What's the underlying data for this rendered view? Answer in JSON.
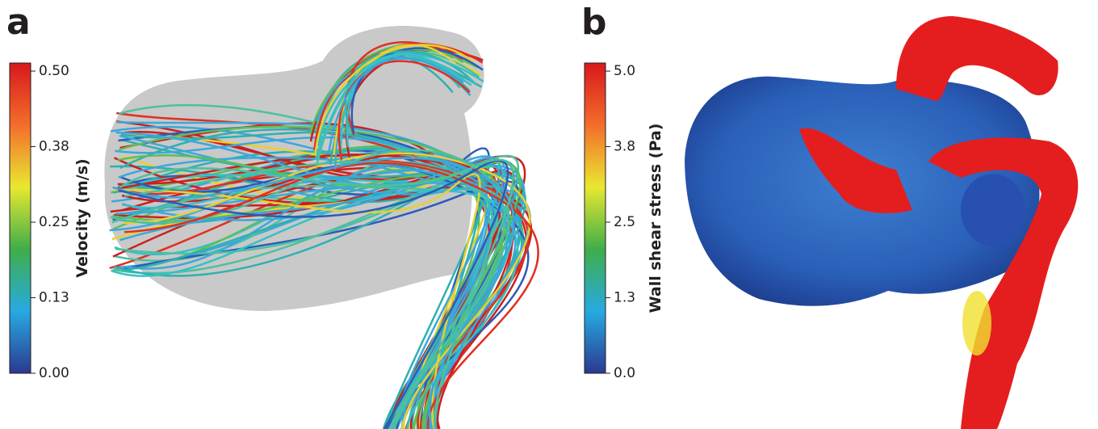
{
  "panels": [
    {
      "label": "a",
      "colorbar": {
        "title": "Velocity (m/s)",
        "ticks": [
          "0.50",
          "0.38",
          "0.25",
          "0.13",
          "0.00"
        ]
      }
    },
    {
      "label": "b",
      "colorbar": {
        "title": "Wall shear stress (Pa)",
        "ticks": [
          "5.0",
          "3.8",
          "2.5",
          "1.3",
          "0.0"
        ]
      }
    }
  ]
}
